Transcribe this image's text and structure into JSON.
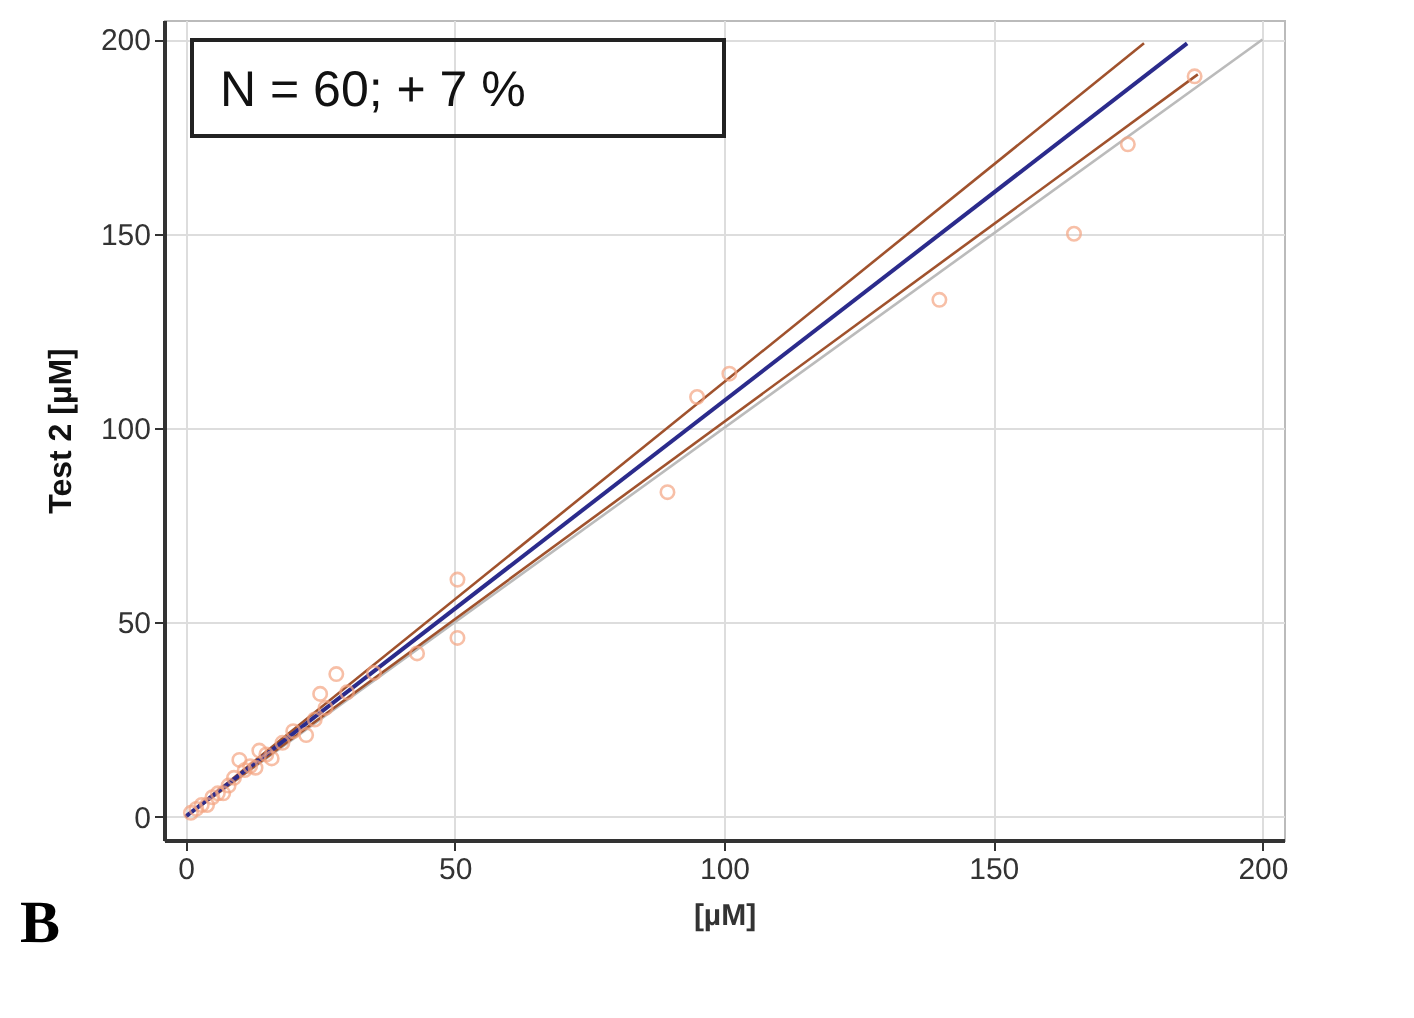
{
  "chart_data": {
    "type": "scatter",
    "xlabel": "[µM]",
    "ylabel": "Test 2 [µM]",
    "annotations": [
      "N = 60; + 7 %",
      "B"
    ],
    "xlim": [
      -4,
      204
    ],
    "ylim": [
      -6,
      205
    ],
    "xticks": [
      0,
      50,
      100,
      150,
      200
    ],
    "yticks": [
      0,
      50,
      100,
      150,
      200
    ],
    "grid": true,
    "legend": false,
    "marker": "circle",
    "x": [
      1,
      2,
      3,
      4,
      5,
      6,
      7,
      8,
      9,
      10,
      11,
      12,
      13,
      13.7,
      15,
      16,
      18,
      20,
      22.4,
      24,
      25,
      26,
      28,
      30,
      35,
      43,
      50.5,
      50.5,
      89.5,
      95,
      101,
      140,
      165,
      175,
      187.4
    ],
    "series": [
      {
        "type": "scatter",
        "color": "#f4a582",
        "values": [
          1,
          2,
          3,
          3,
          5,
          6,
          6,
          8,
          10,
          14.6,
          12,
          13,
          12.6,
          17,
          16,
          15,
          19,
          22,
          21,
          25,
          31.6,
          28,
          36.7,
          32,
          37,
          42,
          61,
          46,
          83.5,
          108,
          114,
          133,
          150,
          173,
          190.5
        ]
      },
      {
        "type": "line",
        "marker": "none",
        "line_style": "solid",
        "color": "#bbbbbb",
        "x": [
          0,
          200
        ],
        "values": [
          0,
          200
        ]
      },
      {
        "type": "line",
        "marker": "none",
        "line_style": "solid",
        "color": "#a0522d",
        "x": [
          0,
          178
        ],
        "values": [
          0,
          199
        ]
      },
      {
        "type": "line",
        "marker": "none",
        "line_style": "solid",
        "color": "#a0522d",
        "x": [
          0,
          188
        ],
        "values": [
          0,
          191
        ]
      },
      {
        "type": "line",
        "marker": "none",
        "line_style": "solid",
        "color": "#2b2b8c",
        "x": [
          0,
          186
        ],
        "values": [
          0,
          199
        ]
      }
    ]
  }
}
